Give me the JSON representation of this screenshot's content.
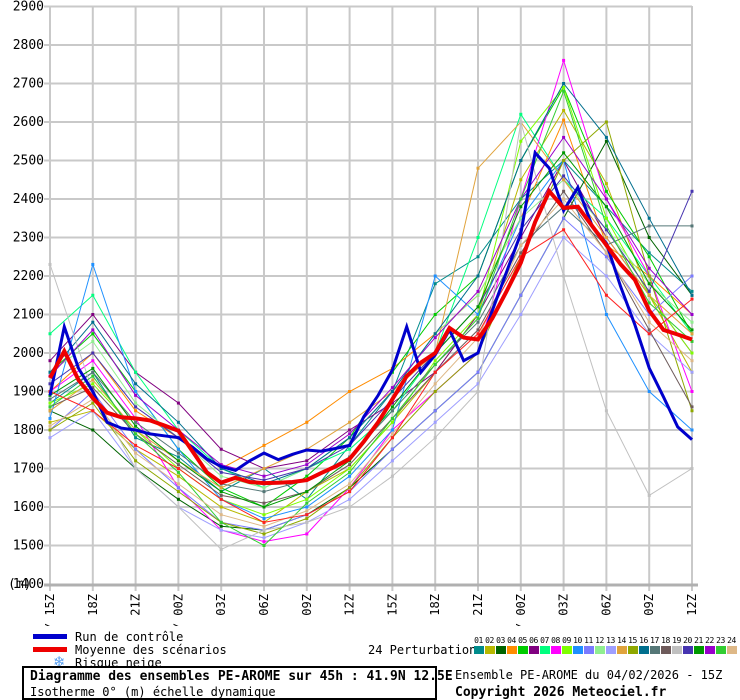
{
  "axes": {
    "y_unit_label": "(m)",
    "y_min": 1400,
    "y_max": 2900,
    "y_step": 100,
    "x_tick_labels": [
      "04/ 15Z",
      "18Z",
      "21Z",
      "05/ 00Z",
      "03Z",
      "06Z",
      "09Z",
      "12Z",
      "15Z",
      "18Z",
      "21Z",
      "06/ 00Z",
      "03Z",
      "06Z",
      "09Z",
      "12Z"
    ]
  },
  "legend": {
    "control_label": "Run de contrôle",
    "mean_label": "Moyenne des scénarios",
    "snow_label": "Risque neige",
    "snow_glyph": "❄",
    "control_color": "#0000cc",
    "mean_color": "#ee0000",
    "snow_color": "#5aa0f0"
  },
  "perturbations": {
    "label": "24 Perturbations",
    "ids": [
      "01",
      "02",
      "03",
      "04",
      "05",
      "06",
      "07",
      "08",
      "09",
      "10",
      "11",
      "12",
      "13",
      "14",
      "15",
      "16",
      "17",
      "18",
      "19",
      "20",
      "21",
      "22",
      "23",
      "24"
    ]
  },
  "footer": {
    "title": "Diagramme des ensembles PE-AROME sur 45h : 41.9N 12.5E",
    "subtitle": "Isotherme 0° (m) échelle dynamique",
    "run_info": "Ensemble PE-AROME du 04/02/2026 - 15Z",
    "copyright": "Copyright 2026 Meteociel.fr"
  },
  "chart_data": {
    "type": "line",
    "title": "Diagramme des ensembles PE-AROME sur 45h : 41.9N 12.5E",
    "ylabel": "Isotherme 0° (m)",
    "ylim": [
      1400,
      2900
    ],
    "grid": true,
    "x_hours_span": 45,
    "x_labels_3h": [
      "04/ 15Z",
      "18Z",
      "21Z",
      "05/ 00Z",
      "03Z",
      "06Z",
      "09Z",
      "12Z",
      "15Z",
      "18Z",
      "21Z",
      "06/ 00Z",
      "03Z",
      "06Z",
      "09Z",
      "12Z"
    ],
    "control_run": {
      "name": "Run de contrôle",
      "color": "#0000cc",
      "resolution_hours": 1,
      "values": [
        1890,
        2068,
        1960,
        1900,
        1820,
        1805,
        1800,
        1790,
        1785,
        1780,
        1755,
        1725,
        1705,
        1695,
        1720,
        1740,
        1723,
        1737,
        1748,
        1745,
        1752,
        1760,
        1835,
        1890,
        1956,
        2068,
        1950,
        1995,
        2060,
        1980,
        2000,
        2110,
        2210,
        2310,
        2520,
        2480,
        2370,
        2430,
        2330,
        2285,
        2172,
        2073,
        1961,
        1886,
        1808,
        1775
      ]
    },
    "mean_run": {
      "name": "Moyenne des scénarios",
      "color": "#ee0000",
      "resolution_hours": 1,
      "values": [
        1935,
        2005,
        1930,
        1883,
        1845,
        1833,
        1830,
        1825,
        1812,
        1798,
        1744,
        1690,
        1663,
        1676,
        1665,
        1662,
        1663,
        1665,
        1670,
        1688,
        1705,
        1725,
        1770,
        1820,
        1880,
        1940,
        1975,
        2000,
        2065,
        2040,
        2035,
        2090,
        2160,
        2234,
        2340,
        2420,
        2377,
        2380,
        2330,
        2280,
        2230,
        2190,
        2110,
        2060,
        2048,
        2035
      ]
    },
    "det_run": {
      "name": "det-thin-red",
      "color": "#ff2020",
      "resolution_hours": 3,
      "values": [
        1900,
        1850,
        1760,
        1700,
        1620,
        1560,
        1580,
        1640,
        1780,
        1950,
        2050,
        2250,
        2320,
        2150,
        2050,
        2140
      ]
    },
    "members_resolution_hours": 3,
    "members": [
      {
        "id": "01",
        "color": "#008b8b",
        "values": [
          1870,
          1950,
          1780,
          1730,
          1640,
          1700,
          1620,
          1760,
          1900,
          2180,
          2250,
          2400,
          2500,
          2380,
          2260,
          2160
        ]
      },
      {
        "id": "02",
        "color": "#b8b800",
        "values": [
          1820,
          1850,
          1750,
          1680,
          1600,
          1560,
          1640,
          1700,
          1820,
          1950,
          2100,
          2450,
          2630,
          2440,
          2150,
          1950
        ]
      },
      {
        "id": "03",
        "color": "#006400",
        "values": [
          1850,
          1800,
          1700,
          1620,
          1550,
          1540,
          1580,
          1650,
          1750,
          1850,
          1950,
          2150,
          2350,
          2550,
          2300,
          2150
        ]
      },
      {
        "id": "04",
        "color": "#ff8c00",
        "values": [
          1900,
          2000,
          1850,
          1780,
          1700,
          1760,
          1820,
          1900,
          1960,
          2050,
          2150,
          2350,
          2605,
          2280,
          2200,
          2100
        ]
      },
      {
        "id": "05",
        "color": "#00cc00",
        "values": [
          1950,
          2050,
          1900,
          1750,
          1650,
          1600,
          1680,
          1780,
          1950,
          2100,
          2200,
          2500,
          2690,
          2420,
          2250,
          2050
        ]
      },
      {
        "id": "06",
        "color": "#800080",
        "values": [
          1980,
          2100,
          1950,
          1870,
          1750,
          1700,
          1720,
          1800,
          1870,
          1950,
          2100,
          2300,
          2500,
          2300,
          2150,
          2000
        ]
      },
      {
        "id": "07",
        "color": "#00ff7f",
        "values": [
          2050,
          2150,
          1950,
          1800,
          1700,
          1650,
          1700,
          1750,
          1850,
          2000,
          2300,
          2620,
          2450,
          2350,
          2200,
          2050
        ]
      },
      {
        "id": "08",
        "color": "#ff00ff",
        "values": [
          1900,
          1980,
          1830,
          1650,
          1540,
          1510,
          1530,
          1650,
          1800,
          1900,
          2000,
          2400,
          2760,
          2400,
          2200,
          1900
        ]
      },
      {
        "id": "09",
        "color": "#7fff00",
        "values": [
          1870,
          1920,
          1800,
          1700,
          1620,
          1580,
          1620,
          1700,
          1820,
          1980,
          2100,
          2550,
          2690,
          2350,
          2150,
          2000
        ]
      },
      {
        "id": "10",
        "color": "#1e90ff",
        "values": [
          1830,
          2230,
          1900,
          1750,
          1620,
          1570,
          1600,
          1680,
          1800,
          2200,
          2100,
          2350,
          2500,
          2100,
          1900,
          1800
        ]
      },
      {
        "id": "11",
        "color": "#7b7bff",
        "values": [
          1800,
          1900,
          1750,
          1650,
          1560,
          1540,
          1580,
          1640,
          1750,
          1850,
          1950,
          2150,
          2350,
          2250,
          2100,
          2200
        ]
      },
      {
        "id": "12",
        "color": "#90ee90",
        "values": [
          1950,
          2030,
          1870,
          1780,
          1680,
          1650,
          1700,
          1780,
          1900,
          2050,
          2150,
          2350,
          2450,
          2320,
          2180,
          2080
        ]
      },
      {
        "id": "13",
        "color": "#9f9fff",
        "values": [
          1780,
          1850,
          1700,
          1600,
          1540,
          1520,
          1560,
          1620,
          1720,
          1820,
          1920,
          2100,
          2300,
          2200,
          2050,
          1950
        ]
      },
      {
        "id": "14",
        "color": "#e0a33c",
        "values": [
          1850,
          1930,
          1800,
          1720,
          1650,
          1700,
          1750,
          1820,
          1900,
          2000,
          2480,
          2600,
          2450,
          2300,
          2150,
          2050
        ]
      },
      {
        "id": "15",
        "color": "#8fa800",
        "values": [
          1800,
          1870,
          1720,
          1640,
          1560,
          1530,
          1570,
          1650,
          1780,
          1900,
          2000,
          2250,
          2500,
          2600,
          2200,
          1850
        ]
      },
      {
        "id": "16",
        "color": "#006f8e",
        "values": [
          1950,
          2080,
          1920,
          1820,
          1700,
          1660,
          1700,
          1780,
          1900,
          2050,
          2200,
          2500,
          2700,
          2560,
          2350,
          2150
        ]
      },
      {
        "id": "17",
        "color": "#557777",
        "values": [
          1880,
          1950,
          1820,
          1740,
          1660,
          1640,
          1670,
          1730,
          1850,
          1970,
          2080,
          2280,
          2380,
          2280,
          2330,
          2330
        ]
      },
      {
        "id": "18",
        "color": "#6e5b5b",
        "values": [
          1860,
          1910,
          1790,
          1710,
          1630,
          1610,
          1640,
          1710,
          1830,
          1950,
          2060,
          2260,
          2420,
          2260,
          2060,
          1860
        ]
      },
      {
        "id": "19",
        "color": "#c0c0c0",
        "values": [
          2230,
          1900,
          1700,
          1600,
          1490,
          1540,
          1560,
          1600,
          1680,
          1780,
          1900,
          2600,
          2200,
          1850,
          1630,
          1700
        ]
      },
      {
        "id": "20",
        "color": "#4634b0",
        "values": [
          1920,
          2000,
          1860,
          1780,
          1690,
          1670,
          1700,
          1760,
          1880,
          2000,
          2120,
          2320,
          2460,
          2320,
          2160,
          2420
        ]
      },
      {
        "id": "21",
        "color": "#009900",
        "values": [
          1890,
          1960,
          1810,
          1720,
          1640,
          1600,
          1640,
          1720,
          1860,
          2000,
          2120,
          2380,
          2520,
          2380,
          2180,
          2060
        ]
      },
      {
        "id": "22",
        "color": "#9900cc",
        "values": [
          1940,
          2060,
          1890,
          1800,
          1710,
          1680,
          1710,
          1790,
          1910,
          2040,
          2160,
          2400,
          2560,
          2400,
          2220,
          2100
        ]
      },
      {
        "id": "23",
        "color": "#32cd32",
        "values": [
          1860,
          1940,
          1790,
          1690,
          1560,
          1500,
          1610,
          1690,
          1830,
          1970,
          2090,
          2400,
          2680,
          2330,
          2130,
          2030
        ]
      },
      {
        "id": "24",
        "color": "#deb887",
        "values": [
          1810,
          1880,
          1740,
          1660,
          1580,
          1550,
          1590,
          1660,
          1790,
          1920,
          2040,
          2280,
          2400,
          2260,
          2080,
          1980
        ]
      }
    ]
  }
}
